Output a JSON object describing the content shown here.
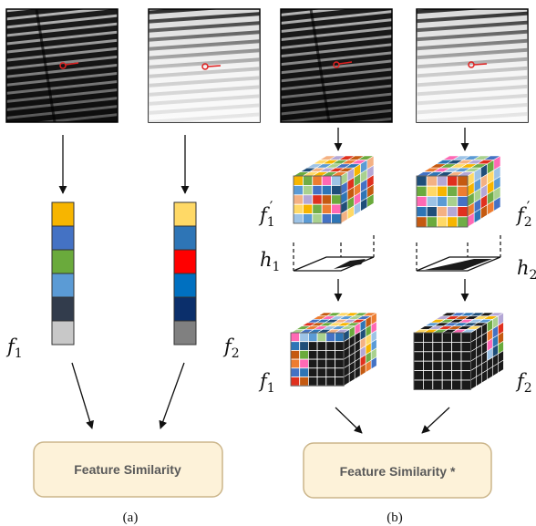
{
  "panels": {
    "a": {
      "caption": "(a)",
      "feature_left_label": "f",
      "feature_left_sub": "1",
      "feature_right_label": "f",
      "feature_right_sub": "2",
      "box_label": "Feature Similarity",
      "vector_left_colors": [
        "#f7b500",
        "#4472c4",
        "#6aaa3c",
        "#5b9bd5",
        "#323c4c",
        "#c8c8c8"
      ],
      "vector_right_colors": [
        "#ffd966",
        "#2e75b6",
        "#ff0000",
        "#0070c0",
        "#0b2f6b",
        "#808080"
      ]
    },
    "b": {
      "caption": "(b)",
      "cube_left_label": "f",
      "cube_left_sub": "1",
      "cube_left_prime": "′",
      "cube_right_label": "f",
      "cube_right_sub": "2",
      "cube_right_prime": "′",
      "h_left_label": "h",
      "h_left_sub": "1",
      "h_right_label": "h",
      "h_right_sub": "2",
      "masked_left_label": "f",
      "masked_left_sub": "1",
      "masked_right_label": "f",
      "masked_right_sub": "2",
      "box_label": "Feature Similarity *"
    }
  },
  "palette": [
    "#f7b500",
    "#4472c4",
    "#6aaa3c",
    "#5b9bd5",
    "#e0301e",
    "#ff69b4",
    "#f4b183",
    "#70ad47",
    "#2e75b6",
    "#ffd966",
    "#a9d18e",
    "#c55a11",
    "#9dc3e6",
    "#b4a7d6",
    "#ed7d31",
    "#1f4e79"
  ],
  "colors": {
    "box_fill": "#fdf2d9",
    "box_stroke": "#cbb58a",
    "cube_dark": "#1a1a1a",
    "marker": "#e02020"
  }
}
